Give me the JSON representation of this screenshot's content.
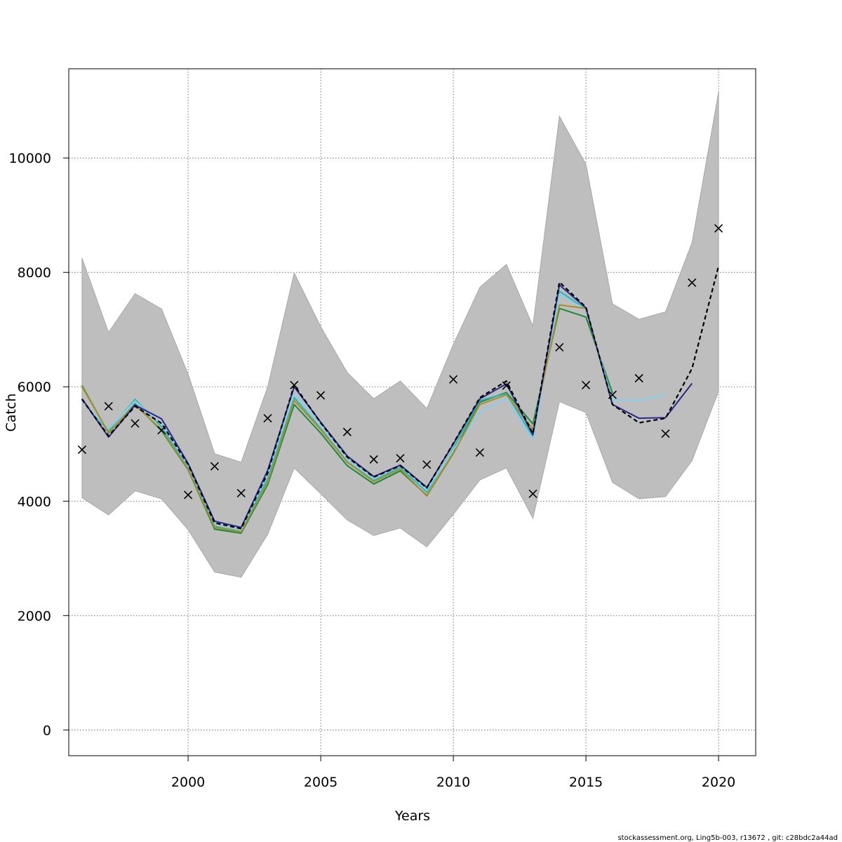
{
  "chart_data": {
    "type": "line",
    "title": "",
    "xlabel": "Years",
    "ylabel": "Catch",
    "xlim": [
      1995.5,
      2021.4
    ],
    "ylim": [
      -450,
      11560
    ],
    "grid": true,
    "x_ticks": [
      2000,
      2005,
      2010,
      2015,
      2020
    ],
    "y_ticks": [
      0,
      2000,
      4000,
      6000,
      8000,
      10000
    ],
    "x_tick_labels": [
      "2000",
      "2005",
      "2010",
      "2015",
      "2020"
    ],
    "y_tick_labels": [
      "0",
      "2000",
      "4000",
      "6000",
      "8000",
      "10000"
    ],
    "footer": "stockassessment.org, Ling5b-003, r13672 , git: c28bdc2a44ad",
    "years": [
      1996,
      1997,
      1998,
      1999,
      2000,
      2001,
      2002,
      2003,
      2004,
      2005,
      2006,
      2007,
      2008,
      2009,
      2010,
      2011,
      2012,
      2013,
      2014,
      2015,
      2016,
      2017,
      2018,
      2019,
      2020
    ],
    "band": {
      "color": "#bebebe",
      "edge": "#a8a8a8",
      "upper": [
        8250,
        6950,
        7630,
        7360,
        6220,
        4830,
        4680,
        6000,
        7990,
        7050,
        6250,
        5790,
        6100,
        5620,
        6740,
        7740,
        8140,
        7060,
        10730,
        9890,
        7450,
        7180,
        7310,
        8520,
        11150
      ],
      "lower": [
        4060,
        3760,
        4180,
        4040,
        3500,
        2760,
        2670,
        3420,
        4580,
        4130,
        3670,
        3400,
        3530,
        3200,
        3770,
        4370,
        4580,
        3700,
        5740,
        5550,
        4330,
        4040,
        4080,
        4710,
        5920
      ]
    },
    "observed": {
      "marker": "x",
      "color": "#000000",
      "values": [
        4900,
        5660,
        5360,
        5240,
        4110,
        4610,
        4140,
        5450,
        6030,
        5850,
        5210,
        4730,
        4750,
        4640,
        6130,
        4850,
        6020,
        4130,
        6690,
        6030,
        5860,
        6150,
        5180,
        7820,
        8770
      ]
    },
    "series": [
      {
        "color": "#1a8a3a",
        "width": 2,
        "values": [
          6020,
          5190,
          5700,
          5230,
          4550,
          3510,
          3440,
          4290,
          5690,
          5190,
          4620,
          4300,
          4530,
          4100,
          4840,
          5730,
          5900,
          5350,
          7370,
          7220,
          5890
        ]
      },
      {
        "color": "#2ab5b0",
        "width": 2,
        "values": [
          5760,
          5230,
          5780,
          5300,
          4600,
          3560,
          3470,
          4390,
          5810,
          5270,
          4690,
          4360,
          4590,
          4160,
          4920,
          5760,
          5880,
          5130,
          7670,
          7360,
          5700
        ]
      },
      {
        "color": "#87ceeb",
        "width": 2,
        "values": [
          5750,
          5260,
          5750,
          5340,
          4620,
          3620,
          3510,
          4460,
          5880,
          5340,
          4740,
          4400,
          4620,
          4190,
          4900,
          5550,
          5800,
          5090,
          7620,
          7350,
          5770,
          5760,
          5860
        ]
      },
      {
        "color": "#a8902e",
        "width": 2,
        "values": [
          6000,
          5200,
          5680,
          5250,
          4560,
          3540,
          3460,
          4330,
          5760,
          5250,
          4680,
          4340,
          4560,
          4090,
          4830,
          5690,
          5860,
          5260,
          7430,
          7370,
          5680
        ]
      },
      {
        "color": "#2a2a8a",
        "width": 2,
        "values": [
          5790,
          5120,
          5680,
          5440,
          4660,
          3650,
          3540,
          4540,
          6000,
          5380,
          4790,
          4430,
          4630,
          4240,
          5000,
          5790,
          6050,
          5160,
          7780,
          7380,
          5690,
          5450,
          5460,
          6060
        ]
      },
      {
        "color": "#000000",
        "width": 2.2,
        "dash": "6,4",
        "values": [
          5780,
          5140,
          5660,
          5360,
          4640,
          3620,
          3520,
          4490,
          6030,
          5370,
          4770,
          4420,
          4620,
          4230,
          5010,
          5810,
          6100,
          5180,
          7830,
          7390,
          5690,
          5370,
          5450,
          6320,
          8110
        ]
      }
    ]
  }
}
